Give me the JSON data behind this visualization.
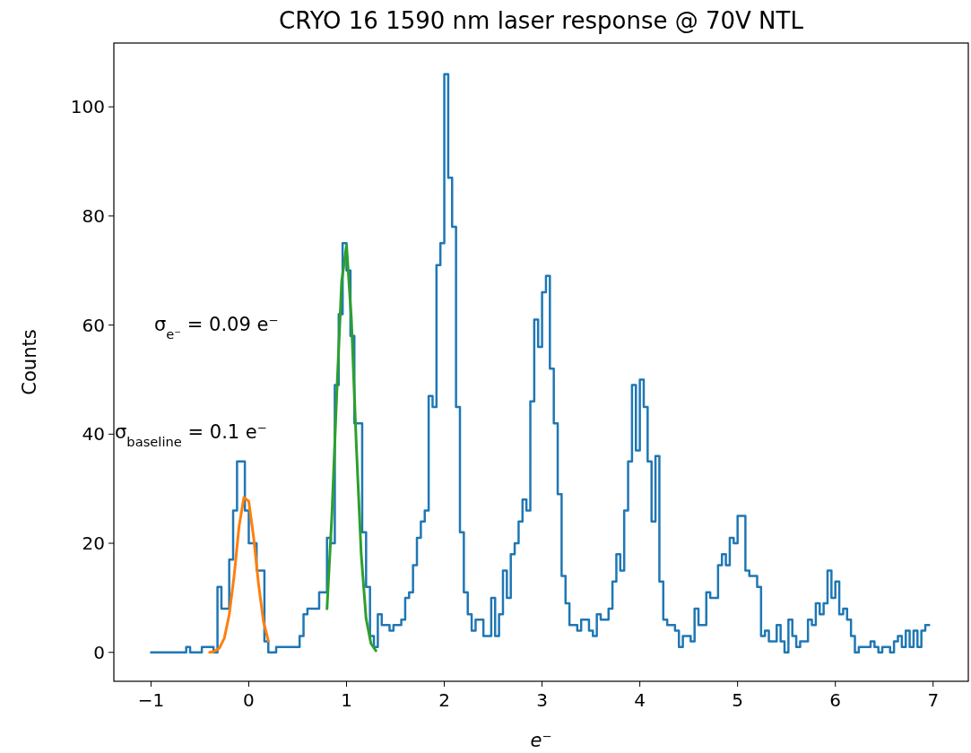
{
  "chart_data": {
    "type": "step",
    "title": "CRYO 16 1590 nm laser response @ 70V NTL",
    "xlabel": "e⁻",
    "ylabel": "Counts",
    "series": [
      {
        "color": "#1f77b4",
        "x": [
          -1,
          -0.96,
          -0.92,
          -0.88,
          -0.84,
          -0.8,
          -0.76,
          -0.72,
          -0.68,
          -0.64,
          -0.6,
          -0.56,
          -0.52,
          -0.48,
          -0.44,
          -0.4,
          -0.36,
          -0.32,
          -0.28,
          -0.24,
          -0.2,
          -0.16,
          -0.12,
          -0.08,
          -0.04,
          0,
          0.04,
          0.08,
          0.12,
          0.16,
          0.2,
          0.24,
          0.28,
          0.32,
          0.36,
          0.4,
          0.44,
          0.48,
          0.52,
          0.56,
          0.6,
          0.64,
          0.68,
          0.72,
          0.76,
          0.8,
          0.84,
          0.88,
          0.92,
          0.96,
          1,
          1.04,
          1.08,
          1.12,
          1.16,
          1.2,
          1.24,
          1.28,
          1.32,
          1.36,
          1.4,
          1.44,
          1.48,
          1.52,
          1.56,
          1.6,
          1.64,
          1.68,
          1.72,
          1.76,
          1.8,
          1.84,
          1.88,
          1.92,
          1.96,
          2,
          2.04,
          2.08,
          2.12,
          2.16,
          2.2,
          2.24,
          2.28,
          2.32,
          2.36,
          2.4,
          2.44,
          2.48,
          2.52,
          2.56,
          2.6,
          2.64,
          2.68,
          2.72,
          2.76,
          2.8,
          2.84,
          2.88,
          2.92,
          2.96,
          3,
          3.04,
          3.08,
          3.12,
          3.16,
          3.2,
          3.24,
          3.28,
          3.32,
          3.36,
          3.4,
          3.44,
          3.48,
          3.52,
          3.56,
          3.6,
          3.64,
          3.68,
          3.72,
          3.76,
          3.8,
          3.84,
          3.88,
          3.92,
          3.96,
          4,
          4.04,
          4.08,
          4.12,
          4.16,
          4.2,
          4.24,
          4.28,
          4.32,
          4.36,
          4.4,
          4.44,
          4.48,
          4.52,
          4.56,
          4.6,
          4.64,
          4.68,
          4.72,
          4.76,
          4.8,
          4.84,
          4.88,
          4.92,
          4.96,
          5,
          5.04,
          5.08,
          5.12,
          5.16,
          5.2,
          5.24,
          5.28,
          5.32,
          5.36,
          5.4,
          5.44,
          5.48,
          5.52,
          5.56,
          5.6,
          5.64,
          5.68,
          5.72,
          5.76,
          5.8,
          5.84,
          5.88,
          5.92,
          5.96,
          6,
          6.04,
          6.08,
          6.12,
          6.16,
          6.2,
          6.24,
          6.28,
          6.32,
          6.36,
          6.4,
          6.44,
          6.48,
          6.52,
          6.56,
          6.6,
          6.64,
          6.68,
          6.72,
          6.76,
          6.8,
          6.84,
          6.88,
          6.92,
          6.96
        ],
        "values": [
          0,
          0,
          0,
          0,
          0,
          0,
          0,
          0,
          0,
          1,
          0,
          0,
          0,
          1,
          1,
          1,
          0,
          12,
          8,
          8,
          17,
          26,
          35,
          35,
          26,
          20,
          20,
          15,
          15,
          2,
          0,
          0,
          1,
          1,
          1,
          1,
          1,
          1,
          3,
          7,
          8,
          8,
          8,
          11,
          11,
          21,
          20,
          49,
          62,
          75,
          70,
          58,
          42,
          42,
          22,
          12,
          3,
          1,
          7,
          5,
          5,
          4,
          5,
          5,
          6,
          10,
          11,
          16,
          21,
          24,
          26,
          47,
          45,
          71,
          75,
          106,
          87,
          78,
          45,
          22,
          11,
          7,
          4,
          6,
          6,
          3,
          3,
          10,
          3,
          7,
          15,
          10,
          18,
          20,
          24,
          28,
          26,
          46,
          61,
          56,
          66,
          69,
          52,
          42,
          29,
          14,
          9,
          5,
          5,
          4,
          6,
          6,
          4,
          3,
          7,
          6,
          6,
          8,
          13,
          18,
          15,
          26,
          35,
          49,
          37,
          50,
          45,
          35,
          24,
          36,
          13,
          6,
          5,
          5,
          4,
          1,
          3,
          3,
          2,
          8,
          5,
          5,
          11,
          10,
          10,
          16,
          18,
          16,
          21,
          20,
          25,
          25,
          15,
          14,
          14,
          12,
          3,
          4,
          2,
          2,
          5,
          2,
          0,
          6,
          3,
          1,
          2,
          2,
          6,
          5,
          9,
          7,
          9,
          15,
          10,
          13,
          7,
          8,
          6,
          3,
          0,
          1,
          1,
          1,
          2,
          1,
          0,
          1,
          1,
          0,
          2,
          3,
          1,
          4,
          1,
          4,
          1,
          4,
          5,
          5
        ]
      },
      {
        "type": "line",
        "color": "#ff7f0e",
        "x": [
          -0.4,
          -0.35,
          -0.3,
          -0.25,
          -0.2,
          -0.15,
          -0.1,
          -0.05,
          0,
          0.05,
          0.1,
          0.15,
          0.2
        ],
        "values": [
          0,
          0.2,
          0.8,
          2.6,
          6.9,
          14,
          23,
          28.4,
          27.7,
          21,
          12.5,
          5.7,
          2.1
        ]
      },
      {
        "type": "line",
        "color": "#2ca02c",
        "x": [
          0.8,
          0.85,
          0.9,
          0.95,
          1,
          1.05,
          1.1,
          1.15,
          1.2,
          1.25,
          1.3
        ],
        "values": [
          8,
          25,
          47.5,
          68,
          74.6,
          61,
          38,
          18,
          6.2,
          1.6,
          0.3
        ]
      }
    ],
    "annotations": [
      "σ$_{e⁻}$ = 0.09 e⁻",
      "σ$_{baseline}$ = 0.1 e⁻"
    ],
    "xlim": [
      -1.38,
      7.36
    ],
    "ylim": [
      -5.3,
      111.7
    ],
    "xticks": [
      {
        "value": -1,
        "label": "−1"
      },
      0,
      1,
      2,
      3,
      4,
      5,
      6,
      7
    ],
    "yticks": [
      0,
      20,
      40,
      60,
      80,
      100
    ]
  }
}
